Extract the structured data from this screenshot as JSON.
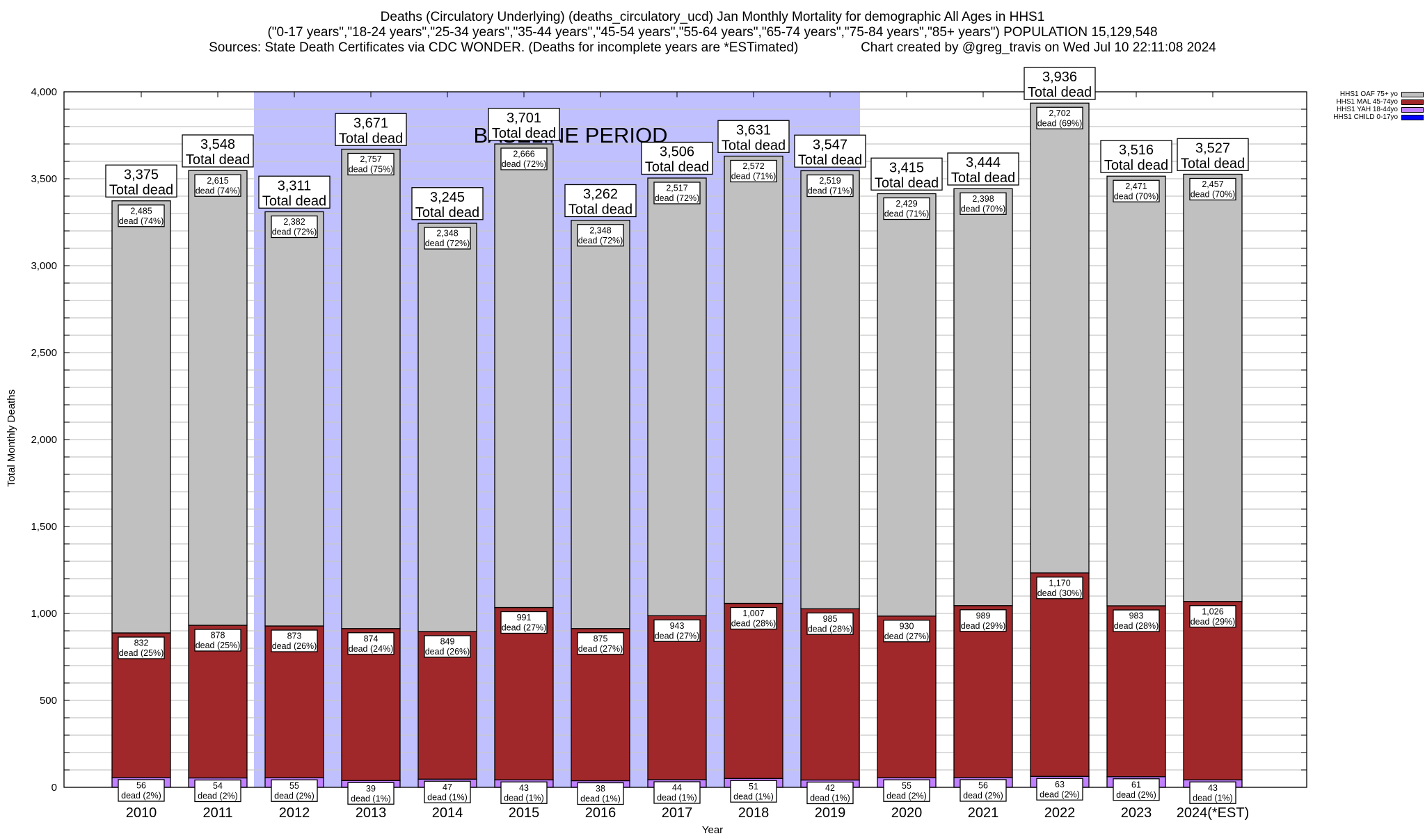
{
  "header": {
    "line1": "Deaths (Circulatory Underlying) (deaths_circulatory_ucd) Jan Monthly Mortality for demographic All Ages in HHS1",
    "line2": "(\"0-17 years\",\"18-24 years\",\"25-34 years\",\"35-44 years\",\"45-54 years\",\"55-64 years\",\"65-74 years\",\"75-84 years\",\"85+ years\") POPULATION 15,129,548",
    "line3": "Sources: State Death Certificates via CDC WONDER. (Deaths for incomplete years are *ESTimated)                 Chart created by @greg_travis on Wed Jul 10 22:11:08 2024"
  },
  "chart_data": {
    "type": "bar",
    "stacked": true,
    "title": "Deaths (Circulatory Underlying) (deaths_circulatory_ucd) Jan Monthly Mortality for demographic All Ages in HHS1",
    "xlabel": "Year",
    "ylabel": "Total Monthly Deaths",
    "ylim": [
      0,
      4000
    ],
    "yticks": [
      0,
      500,
      1000,
      1500,
      2000,
      2500,
      3000,
      3500,
      4000
    ],
    "ytick_labels": [
      "0",
      "500",
      "1,000",
      "1,500",
      "2,000",
      "2,500",
      "3,000",
      "3,500",
      "4,000"
    ],
    "minor_grid_step": 100,
    "grid": true,
    "legend_position": "top-right",
    "categories": [
      "2010",
      "2011",
      "2012",
      "2013",
      "2014",
      "2015",
      "2016",
      "2017",
      "2018",
      "2019",
      "2020",
      "2021",
      "2022",
      "2023",
      "2024(*EST)"
    ],
    "totals": [
      3375,
      3548,
      3311,
      3671,
      3245,
      3701,
      3262,
      3506,
      3631,
      3547,
      3415,
      3444,
      3936,
      3516,
      3527
    ],
    "total_label_suffix": "Total dead",
    "segment_label_word": "dead",
    "series": [
      {
        "name": "HHS1 CHILD 0-17yo",
        "color": "#0000ff",
        "values": [
          0,
          0,
          0,
          0,
          0,
          0,
          0,
          0,
          0,
          0,
          0,
          0,
          0,
          0,
          0
        ],
        "labeled": false
      },
      {
        "name": "HHS1 YAH 18-44yo",
        "color": "#c080ff",
        "values": [
          56,
          54,
          55,
          39,
          47,
          43,
          38,
          44,
          51,
          42,
          55,
          56,
          63,
          61,
          43
        ],
        "pct": [
          "2%",
          "2%",
          "2%",
          "1%",
          "1%",
          "1%",
          "1%",
          "1%",
          "1%",
          "1%",
          "2%",
          "2%",
          "2%",
          "2%",
          "1%"
        ],
        "labeled": true
      },
      {
        "name": "HHS1 MAL 45-74yo",
        "color": "#a0282a",
        "values": [
          832,
          878,
          873,
          874,
          849,
          991,
          875,
          943,
          1007,
          985,
          930,
          989,
          1170,
          983,
          1026
        ],
        "pct": [
          "25%",
          "25%",
          "26%",
          "24%",
          "26%",
          "27%",
          "27%",
          "27%",
          "28%",
          "28%",
          "27%",
          "29%",
          "30%",
          "28%",
          "29%"
        ],
        "labeled": true
      },
      {
        "name": "HHS1 OAF 75+ yo",
        "color": "#c0c0c0",
        "values": [
          2485,
          2615,
          2382,
          2757,
          2348,
          2666,
          2348,
          2517,
          2572,
          2519,
          2429,
          2398,
          2702,
          2471,
          2457
        ],
        "pct": [
          "74%",
          "74%",
          "72%",
          "75%",
          "72%",
          "72%",
          "72%",
          "72%",
          "71%",
          "71%",
          "71%",
          "70%",
          "69%",
          "70%",
          "70%"
        ],
        "labeled": true
      }
    ],
    "annotations": [
      {
        "text": "BASELINE PERIOD",
        "span": [
          "2012",
          "2019"
        ],
        "color": "#c0c0ff"
      }
    ]
  },
  "legend": {
    "items": [
      {
        "label": "HHS1 OAF 75+ yo",
        "color": "#c0c0c0"
      },
      {
        "label": "HHS1 MAL 45-74yo",
        "color": "#a0282a"
      },
      {
        "label": "HHS1 YAH 18-44yo",
        "color": "#c080ff"
      },
      {
        "label": "HHS1 CHILD 0-17yo",
        "color": "#0000ff"
      }
    ]
  }
}
